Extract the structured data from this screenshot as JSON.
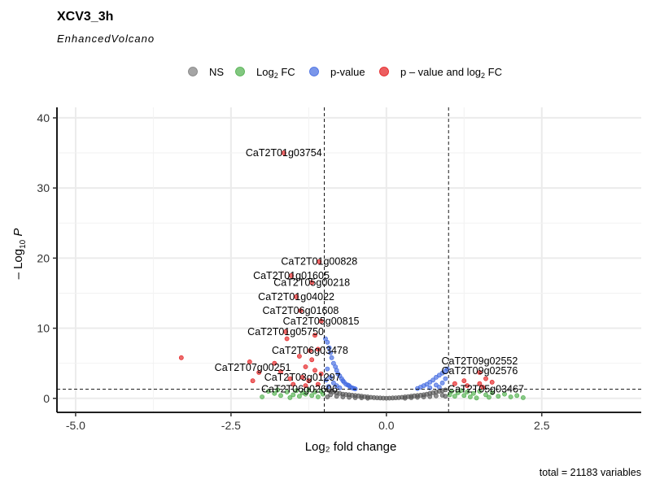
{
  "chart_data": {
    "type": "scatter",
    "title": "XCV3_3h",
    "subtitle": "EnhancedVolcano",
    "xlabel": "Log₂ fold change",
    "ylabel_base": "– Log",
    "ylabel_sub": "10",
    "ylabel_var": "P",
    "caption": "total = 21183 variables",
    "xlim": [
      -5.3,
      4.1
    ],
    "ylim": [
      -2,
      41.5
    ],
    "x_ticks": [
      -5.0,
      -2.5,
      0.0,
      2.5
    ],
    "x_tick_labels": [
      "-5.0",
      "-2.5",
      "0.0",
      "2.5"
    ],
    "y_ticks": [
      0,
      10,
      20,
      30,
      40
    ],
    "y_tick_labels": [
      "0",
      "10",
      "20",
      "30",
      "40"
    ],
    "fc_cutoff": 1,
    "p_cutoff_log10": 1.3,
    "grid": true,
    "legend_position": "top",
    "legend": [
      {
        "key": "ns",
        "label_main": "NS",
        "label_sub": "",
        "label_tail": "",
        "color": "#7f7f7f"
      },
      {
        "key": "fc",
        "label_main": "Log",
        "label_sub": "2",
        "label_tail": " FC",
        "color": "#4daf4a"
      },
      {
        "key": "p",
        "label_main": "p-value",
        "label_sub": "",
        "label_tail": "",
        "color": "#4169e1"
      },
      {
        "key": "both",
        "label_main": "p – value and log",
        "label_sub": "2",
        "label_tail": " FC",
        "color": "#e41a1c"
      }
    ],
    "series": [
      {
        "name": "NS",
        "color": "#555555",
        "points": [
          [
            -0.95,
            1.2
          ],
          [
            -0.9,
            1.0
          ],
          [
            -0.85,
            0.9
          ],
          [
            -0.8,
            0.8
          ],
          [
            -0.75,
            0.7
          ],
          [
            -0.7,
            0.6
          ],
          [
            -0.65,
            0.55
          ],
          [
            -0.6,
            0.5
          ],
          [
            -0.55,
            0.45
          ],
          [
            -0.5,
            0.4
          ],
          [
            -0.45,
            0.35
          ],
          [
            -0.4,
            0.3
          ],
          [
            -0.35,
            0.25
          ],
          [
            -0.3,
            0.2
          ],
          [
            -0.25,
            0.15
          ],
          [
            -0.2,
            0.1
          ],
          [
            -0.15,
            0.08
          ],
          [
            -0.1,
            0.05
          ],
          [
            -0.05,
            0.03
          ],
          [
            0.0,
            0.02
          ],
          [
            0.05,
            0.03
          ],
          [
            0.1,
            0.05
          ],
          [
            0.15,
            0.08
          ],
          [
            0.2,
            0.1
          ],
          [
            0.25,
            0.15
          ],
          [
            0.3,
            0.2
          ],
          [
            0.35,
            0.25
          ],
          [
            0.4,
            0.3
          ],
          [
            0.45,
            0.35
          ],
          [
            0.5,
            0.4
          ],
          [
            0.55,
            0.45
          ],
          [
            0.6,
            0.5
          ],
          [
            0.65,
            0.6
          ],
          [
            0.7,
            0.7
          ],
          [
            0.75,
            0.8
          ],
          [
            0.8,
            0.9
          ],
          [
            0.85,
            1.0
          ],
          [
            0.9,
            1.1
          ],
          [
            0.95,
            1.2
          ],
          [
            -0.9,
            0.5
          ],
          [
            -0.8,
            0.3
          ],
          [
            -0.7,
            0.2
          ],
          [
            -0.6,
            0.15
          ],
          [
            -0.5,
            0.1
          ],
          [
            -0.4,
            0.08
          ],
          [
            0.4,
            0.1
          ],
          [
            0.5,
            0.15
          ],
          [
            0.6,
            0.2
          ],
          [
            0.7,
            0.25
          ],
          [
            0.8,
            0.35
          ],
          [
            0.9,
            0.45
          ],
          [
            -0.95,
            0.2
          ],
          [
            0.95,
            0.3
          ],
          [
            -0.3,
            0.02
          ],
          [
            0.3,
            0.02
          ]
        ]
      },
      {
        "name": "Log₂ FC",
        "color": "#4daf4a",
        "points": [
          [
            -1.9,
            1.0
          ],
          [
            -1.8,
            0.7
          ],
          [
            -1.7,
            0.4
          ],
          [
            -1.6,
            0.9
          ],
          [
            -1.5,
            0.5
          ],
          [
            -1.45,
            1.1
          ],
          [
            -1.4,
            0.3
          ],
          [
            -1.35,
            0.8
          ],
          [
            -1.3,
            0.6
          ],
          [
            -1.25,
            1.2
          ],
          [
            -1.2,
            0.4
          ],
          [
            -1.15,
            0.9
          ],
          [
            -1.1,
            0.2
          ],
          [
            -1.05,
            1.0
          ],
          [
            -1.02,
            0.6
          ],
          [
            -2.0,
            0.2
          ],
          [
            -1.75,
            1.2
          ],
          [
            -1.55,
            0.1
          ],
          [
            1.02,
            0.5
          ],
          [
            1.05,
            1.0
          ],
          [
            1.1,
            0.3
          ],
          [
            1.15,
            0.8
          ],
          [
            1.2,
            1.1
          ],
          [
            1.25,
            0.4
          ],
          [
            1.3,
            0.9
          ],
          [
            1.35,
            0.2
          ],
          [
            1.4,
            0.7
          ],
          [
            1.5,
            1.0
          ],
          [
            1.6,
            0.5
          ],
          [
            1.7,
            0.8
          ],
          [
            1.8,
            0.3
          ],
          [
            1.9,
            0.6
          ],
          [
            2.0,
            0.2
          ],
          [
            2.1,
            0.4
          ],
          [
            2.2,
            0.1
          ],
          [
            1.45,
            0.05
          ],
          [
            1.65,
            0.15
          ]
        ]
      },
      {
        "name": "p-value",
        "color": "#4169e1",
        "points": [
          [
            -0.98,
            8.5
          ],
          [
            -0.95,
            8.0
          ],
          [
            -0.92,
            7.2
          ],
          [
            -0.9,
            6.5
          ],
          [
            -0.88,
            5.8
          ],
          [
            -0.85,
            5.0
          ],
          [
            -0.82,
            4.5
          ],
          [
            -0.8,
            4.0
          ],
          [
            -0.78,
            3.5
          ],
          [
            -0.75,
            3.2
          ],
          [
            -0.72,
            2.8
          ],
          [
            -0.7,
            2.5
          ],
          [
            -0.68,
            2.3
          ],
          [
            -0.65,
            2.0
          ],
          [
            -0.62,
            1.9
          ],
          [
            -0.6,
            1.8
          ],
          [
            -0.58,
            1.6
          ],
          [
            -0.55,
            1.5
          ],
          [
            -0.52,
            1.4
          ],
          [
            -0.5,
            1.35
          ],
          [
            -0.95,
            4.2
          ],
          [
            -0.9,
            3.0
          ],
          [
            -0.85,
            2.2
          ],
          [
            -0.8,
            1.8
          ],
          [
            -0.75,
            1.5
          ],
          [
            -0.97,
            2.6
          ],
          [
            -0.93,
            1.7
          ],
          [
            0.5,
            1.4
          ],
          [
            0.55,
            1.6
          ],
          [
            0.6,
            1.8
          ],
          [
            0.65,
            2.0
          ],
          [
            0.7,
            2.3
          ],
          [
            0.75,
            2.6
          ],
          [
            0.8,
            3.0
          ],
          [
            0.85,
            3.3
          ],
          [
            0.9,
            3.6
          ],
          [
            0.95,
            3.9
          ],
          [
            0.98,
            4.2
          ],
          [
            0.9,
            2.2
          ],
          [
            0.85,
            1.6
          ],
          [
            0.95,
            2.8
          ],
          [
            0.7,
            1.5
          ],
          [
            0.8,
            1.9
          ]
        ]
      },
      {
        "name": "p – value and log₂ FC",
        "color": "#e41a1c",
        "points": [
          [
            -3.3,
            5.8
          ],
          [
            -2.2,
            5.2
          ],
          [
            -2.05,
            3.7
          ],
          [
            -1.65,
            35.0
          ],
          [
            -1.08,
            19.5
          ],
          [
            -1.53,
            17.5
          ],
          [
            -1.2,
            16.5
          ],
          [
            -1.45,
            14.5
          ],
          [
            -1.38,
            12.5
          ],
          [
            -1.05,
            11.0
          ],
          [
            -1.62,
            9.5
          ],
          [
            -1.23,
            6.8
          ],
          [
            -2.15,
            2.5
          ],
          [
            -1.35,
            3.0
          ],
          [
            -1.8,
            5.0
          ],
          [
            -1.3,
            4.5
          ],
          [
            -1.15,
            4.0
          ],
          [
            -1.5,
            2.0
          ],
          [
            -1.4,
            6.0
          ],
          [
            -1.1,
            7.0
          ],
          [
            -1.25,
            2.5
          ],
          [
            -1.6,
            8.5
          ],
          [
            -1.55,
            2.8
          ],
          [
            -1.2,
            5.5
          ],
          [
            -1.05,
            3.5
          ],
          [
            -1.7,
            3.8
          ],
          [
            -1.15,
            9.0
          ],
          [
            -1.3,
            1.8
          ],
          [
            -1.1,
            2.0
          ],
          [
            1.5,
            3.7
          ],
          [
            1.6,
            2.8
          ],
          [
            1.25,
            2.5
          ],
          [
            1.5,
            2.1
          ],
          [
            1.7,
            2.3
          ],
          [
            1.3,
            1.8
          ],
          [
            1.1,
            2.1
          ],
          [
            1.55,
            1.6
          ]
        ]
      }
    ],
    "labels": [
      {
        "text": "CaT2T01g03754",
        "x": -1.65,
        "y": 35.0
      },
      {
        "text": "CaT2T01g00828",
        "x": -1.08,
        "y": 19.5
      },
      {
        "text": "CaT2T01g01605",
        "x": -1.53,
        "y": 17.5
      },
      {
        "text": "CaT2T05g00218",
        "x": -1.2,
        "y": 16.5
      },
      {
        "text": "CaT2T01g04022",
        "x": -1.45,
        "y": 14.5
      },
      {
        "text": "CaT2T06g01608",
        "x": -1.38,
        "y": 12.5
      },
      {
        "text": "CaT2T05g00815",
        "x": -1.05,
        "y": 11.0
      },
      {
        "text": "CaT2T01g05750",
        "x": -1.62,
        "y": 9.5
      },
      {
        "text": "CaT2T06g03478",
        "x": -1.23,
        "y": 6.8
      },
      {
        "text": "CaT2T07g00251",
        "x": -2.15,
        "y": 4.4
      },
      {
        "text": "CaT2T03g01297",
        "x": -1.35,
        "y": 3.0
      },
      {
        "text": "CaT2T06g02606",
        "x": -1.4,
        "y": 1.3
      },
      {
        "text": "CaT2T09g02552",
        "x": 1.5,
        "y": 5.3
      },
      {
        "text": "CaT2T09g02576",
        "x": 1.5,
        "y": 3.9
      },
      {
        "text": "CaT2T05g03467",
        "x": 1.6,
        "y": 1.3
      }
    ]
  }
}
